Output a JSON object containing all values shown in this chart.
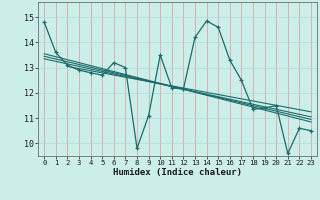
{
  "xlabel": "Humidex (Indice chaleur)",
  "bg_color": "#cceee8",
  "grid_color": "#aadddd",
  "line_color": "#1a6b6b",
  "xlim": [
    -0.5,
    23.5
  ],
  "ylim": [
    9.5,
    15.6
  ],
  "xticks": [
    0,
    1,
    2,
    3,
    4,
    5,
    6,
    7,
    8,
    9,
    10,
    11,
    12,
    13,
    14,
    15,
    16,
    17,
    18,
    19,
    20,
    21,
    22,
    23
  ],
  "yticks": [
    10,
    11,
    12,
    13,
    14,
    15
  ],
  "main_series": [
    14.8,
    13.6,
    13.1,
    12.9,
    12.8,
    12.7,
    13.2,
    13.0,
    9.8,
    11.1,
    13.5,
    12.2,
    12.15,
    14.2,
    14.85,
    14.6,
    13.3,
    12.5,
    11.35,
    11.4,
    11.5,
    9.6,
    10.6,
    10.5
  ],
  "trend_lines": [
    {
      "x0": 0,
      "y0": 13.55,
      "x1": 23,
      "y1": 10.85
    },
    {
      "x0": 0,
      "y0": 13.45,
      "x1": 23,
      "y1": 10.95
    },
    {
      "x0": 0,
      "y0": 13.35,
      "x1": 23,
      "y1": 11.05
    },
    {
      "x0": 2,
      "y0": 13.05,
      "x1": 23,
      "y1": 11.25
    }
  ]
}
